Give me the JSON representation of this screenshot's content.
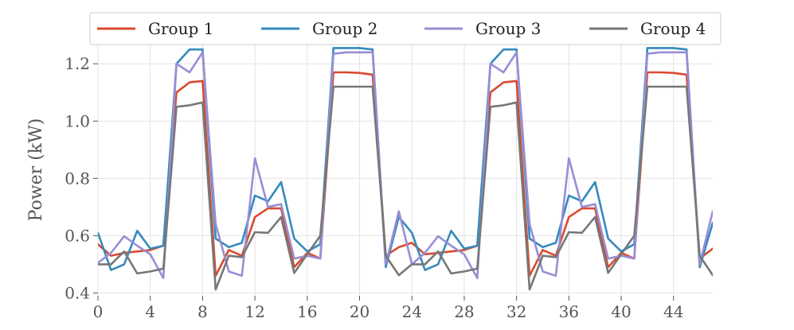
{
  "chart_data": {
    "type": "line",
    "title": "",
    "xlabel": "",
    "ylabel": "Power (kW)",
    "xlim": [
      0,
      47
    ],
    "ylim": [
      0.39,
      1.27
    ],
    "xticks": [
      0,
      4,
      8,
      12,
      16,
      20,
      24,
      28,
      32,
      36,
      40,
      44
    ],
    "yticks": [
      0.4,
      0.6,
      0.8,
      1.0,
      1.2
    ],
    "ytick_labels": [
      "0.4",
      "0.6",
      "0.8",
      "1.0",
      "1.2"
    ],
    "grid": true,
    "legend_position": "top",
    "x": [
      0,
      1,
      2,
      3,
      4,
      5,
      6,
      7,
      8,
      9,
      10,
      11,
      12,
      13,
      14,
      15,
      16,
      17,
      18,
      19,
      20,
      21,
      22,
      23,
      24,
      25,
      26,
      27,
      28,
      29,
      30,
      31,
      32,
      33,
      34,
      35,
      36,
      37,
      38,
      39,
      40,
      41,
      42,
      43,
      44,
      45,
      46,
      47
    ],
    "series": [
      {
        "name": "Group 1",
        "color": "#d9492f",
        "values": [
          0.57,
          0.53,
          0.54,
          0.545,
          0.55,
          0.565,
          1.1,
          1.135,
          1.14,
          0.46,
          0.55,
          0.53,
          0.665,
          0.695,
          0.695,
          0.49,
          0.54,
          0.52,
          1.17,
          1.17,
          1.168,
          1.162,
          0.53,
          0.56,
          0.575,
          0.535,
          0.54,
          0.545,
          0.55,
          0.565,
          1.1,
          1.135,
          1.14,
          0.46,
          0.55,
          0.53,
          0.665,
          0.695,
          0.695,
          0.49,
          0.54,
          0.52,
          1.17,
          1.17,
          1.168,
          1.162,
          0.52,
          0.555
        ]
      },
      {
        "name": "Group 2",
        "color": "#348abd",
        "values": [
          0.61,
          0.48,
          0.5,
          0.617,
          0.555,
          0.565,
          1.2,
          1.25,
          1.25,
          0.59,
          0.56,
          0.575,
          0.74,
          0.72,
          0.787,
          0.59,
          0.545,
          0.57,
          1.255,
          1.255,
          1.255,
          1.25,
          0.49,
          0.665,
          0.61,
          0.48,
          0.5,
          0.617,
          0.555,
          0.565,
          1.2,
          1.25,
          1.25,
          0.59,
          0.56,
          0.575,
          0.74,
          0.72,
          0.787,
          0.59,
          0.545,
          0.57,
          1.255,
          1.255,
          1.255,
          1.25,
          0.49,
          0.645
        ]
      },
      {
        "name": "Group 3",
        "color": "#988ed5",
        "values": [
          0.505,
          0.54,
          0.598,
          0.565,
          0.535,
          0.452,
          1.2,
          1.17,
          1.24,
          0.64,
          0.475,
          0.46,
          0.87,
          0.7,
          0.71,
          0.52,
          0.53,
          0.52,
          1.235,
          1.24,
          1.24,
          1.24,
          0.5,
          0.685,
          0.5,
          0.54,
          0.598,
          0.565,
          0.535,
          0.452,
          1.2,
          1.17,
          1.24,
          0.64,
          0.475,
          0.46,
          0.87,
          0.7,
          0.71,
          0.52,
          0.53,
          0.52,
          1.235,
          1.24,
          1.24,
          1.24,
          0.5,
          0.685
        ]
      },
      {
        "name": "Group 4",
        "color": "#777777",
        "values": [
          0.5,
          0.5,
          0.545,
          0.468,
          0.475,
          0.485,
          1.05,
          1.055,
          1.065,
          0.412,
          0.53,
          0.525,
          0.612,
          0.61,
          0.665,
          0.47,
          0.535,
          0.6,
          1.12,
          1.12,
          1.12,
          1.12,
          0.53,
          0.462,
          0.5,
          0.5,
          0.545,
          0.468,
          0.475,
          0.485,
          1.05,
          1.055,
          1.065,
          0.412,
          0.53,
          0.525,
          0.612,
          0.61,
          0.665,
          0.47,
          0.535,
          0.6,
          1.12,
          1.12,
          1.12,
          1.12,
          0.53,
          0.462
        ]
      }
    ]
  }
}
